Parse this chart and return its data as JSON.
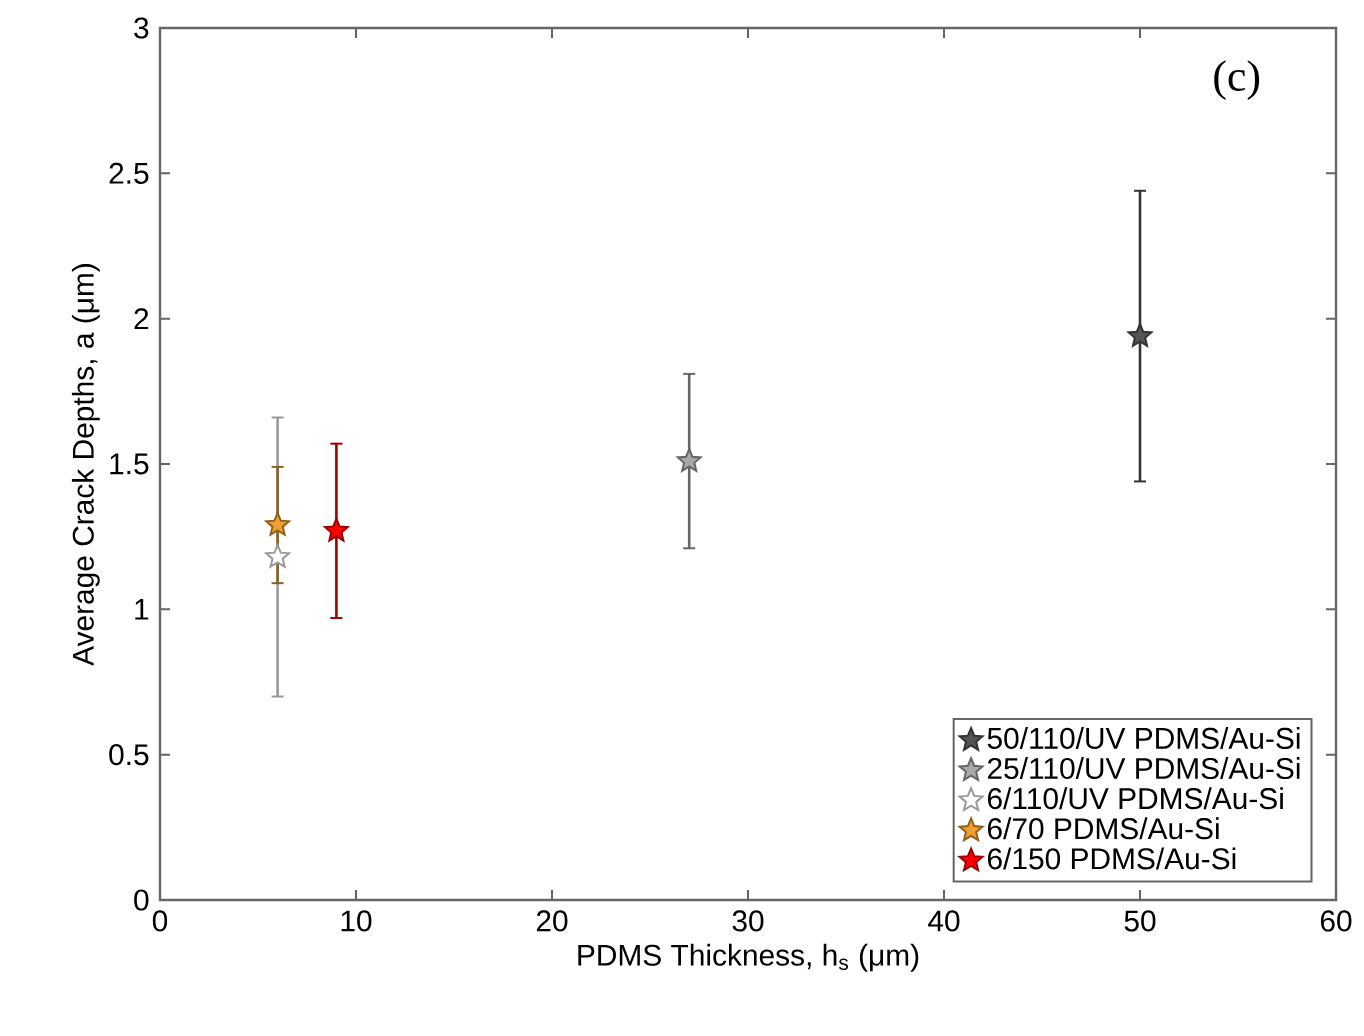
{
  "chart_data": {
    "type": "scatter",
    "xlabel": "PDMS Thickness, h$_{s}$ (μm)",
    "ylabel": "Average Crack Depths, a (μm)",
    "annotations": [
      "(c)"
    ],
    "xlim": [
      0,
      60
    ],
    "ylim": [
      0,
      3
    ],
    "xticks": [
      0,
      10,
      20,
      30,
      40,
      50,
      60
    ],
    "yticks": [
      0,
      0.5,
      1,
      1.5,
      2,
      2.5,
      3
    ],
    "marker": "star",
    "legend": "bottom right",
    "series": [
      {
        "name": "50/110/UV PDMS/Au-Si",
        "color": "#555555",
        "x": [
          50
        ],
        "values": [
          1.94
        ],
        "errors": [
          0.5
        ]
      },
      {
        "name": "25/110/UV PDMS/Au-Si",
        "color": "#a8a8a8",
        "x": [
          27
        ],
        "values": [
          1.51
        ],
        "errors": [
          0.3
        ]
      },
      {
        "name": "6/110/UV PDMS/Au-Si",
        "color": "#ffffff",
        "x": [
          6
        ],
        "values": [
          1.18
        ],
        "errors": [
          0.48
        ]
      },
      {
        "name": "6/70 PDMS/Au-Si",
        "color": "#f0a030",
        "x": [
          6
        ],
        "values": [
          1.29
        ],
        "errors": [
          0.2
        ]
      },
      {
        "name": "6/150 PDMS/Au-Si",
        "color": "#ff0000",
        "x": [
          9
        ],
        "values": [
          1.27
        ],
        "errors": [
          0.3
        ]
      }
    ]
  }
}
